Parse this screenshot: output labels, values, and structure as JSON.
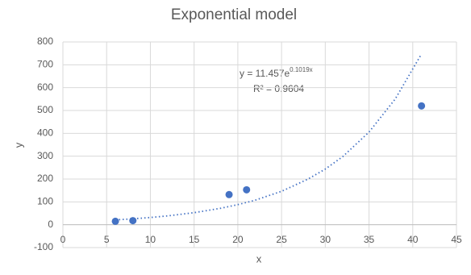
{
  "chart_data": {
    "type": "scatter",
    "title": "Exponential model",
    "x_label": "x",
    "y_label": "y",
    "series": [
      {
        "color": "#4472c4",
        "x": [
          6,
          8,
          19,
          21,
          41
        ],
        "values": [
          15,
          18,
          132,
          153,
          520
        ]
      }
    ],
    "trendline": {
      "color": "#4472c4",
      "style": "dotted",
      "x": [
        6,
        8,
        10,
        12,
        15,
        18,
        20,
        22,
        25,
        28,
        30,
        32,
        35,
        38,
        41
      ],
      "values": [
        21.1,
        25.9,
        31.7,
        38.8,
        52.8,
        71.8,
        87.9,
        107.6,
        146.4,
        199.2,
        243.6,
        298.2,
        405.5,
        550.5,
        747.5
      ]
    },
    "annotations": [
      {
        "text": "y = 11.457e",
        "superscript": "0.1019x"
      },
      {
        "text": "R² = 0.9604"
      }
    ],
    "xlim": [
      0,
      45
    ],
    "xticks": [
      0,
      5,
      10,
      15,
      20,
      25,
      30,
      35,
      40,
      45
    ],
    "ylim": [
      -100,
      800
    ],
    "yticks": [
      -100,
      0,
      100,
      200,
      300,
      400,
      500,
      600,
      700,
      800
    ],
    "grid": true
  }
}
